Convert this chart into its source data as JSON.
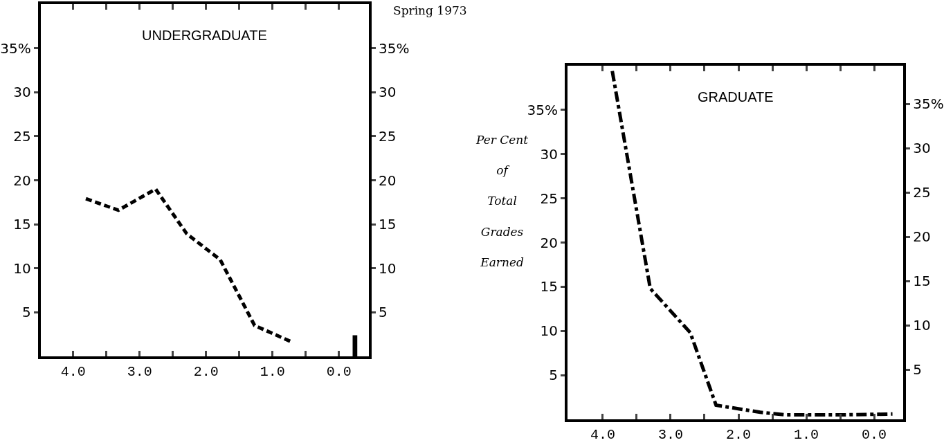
{
  "chart_data": [
    {
      "type": "line",
      "title": "UNDERGRADUATE",
      "annotations": [
        "Spring 1973"
      ],
      "xlim": [
        4.49,
        -0.45
      ],
      "xticks": [
        {
          "value": 4,
          "label": "4.0"
        },
        {
          "value": 3.5,
          "label": null
        },
        {
          "value": 3,
          "label": "3.0"
        },
        {
          "value": 2.5,
          "label": null
        },
        {
          "value": 2,
          "label": "2.0"
        },
        {
          "value": 1.5,
          "label": null
        },
        {
          "value": 1,
          "label": "1.0"
        },
        {
          "value": 0.5,
          "label": null
        },
        {
          "value": 0,
          "label": "0.0"
        }
      ],
      "ylim": [
        0,
        40
      ],
      "yticks": [
        5,
        10,
        15,
        20,
        25,
        30,
        {
          "value": 35,
          "label": "35%"
        }
      ],
      "y2lim": [
        0,
        40
      ],
      "y2ticks": [
        5,
        10,
        15,
        20,
        25,
        30,
        {
          "value": 35,
          "label": "35%"
        }
      ],
      "line_style": "dashed",
      "series": [
        {
          "color": "#000000",
          "x": [
            3.81,
            3.32,
            2.76,
            2.29,
            1.79,
            1.27,
            0.7
          ],
          "values": [
            17.9,
            16.6,
            19.0,
            13.9,
            11.0,
            3.5,
            1.6
          ]
        },
        {
          "type": "bar",
          "color": "#000000",
          "x": [
            -0.24
          ],
          "values": [
            2.4
          ]
        }
      ]
    },
    {
      "type": "line",
      "title": "GRADUATE",
      "ylabel": "Per Cent\nof\nTotal\nGrades\nEarned",
      "xlim": [
        4.52,
        -0.43
      ],
      "xticks": [
        {
          "value": 4,
          "label": "4.0"
        },
        {
          "value": 3.5,
          "label": null
        },
        {
          "value": 3,
          "label": "3.0"
        },
        {
          "value": 2.5,
          "label": null
        },
        {
          "value": 2,
          "label": "2.0"
        },
        {
          "value": 1.5,
          "label": null
        },
        {
          "value": 1,
          "label": "1.0"
        },
        {
          "value": 0.5,
          "label": null
        },
        {
          "value": 0,
          "label": "0.0"
        }
      ],
      "ylim": [
        0,
        40
      ],
      "yticks": [
        5,
        10,
        15,
        20,
        25,
        30,
        {
          "value": 35,
          "label": "35%"
        }
      ],
      "y2lim": [
        -0.6,
        39.3
      ],
      "y2ticks": [
        5,
        10,
        15,
        20,
        25,
        30,
        {
          "value": 35,
          "label": "35%"
        }
      ],
      "line_style": "dashdot",
      "series": [
        {
          "color": "#000000",
          "x": [
            3.86,
            3.3,
            2.71,
            2.33,
            1.68,
            1.3,
            0.56,
            -0.27
          ],
          "values": [
            39.4,
            14.8,
            9.8,
            1.6,
            0.8,
            0.5,
            0.5,
            0.6
          ]
        }
      ]
    }
  ]
}
